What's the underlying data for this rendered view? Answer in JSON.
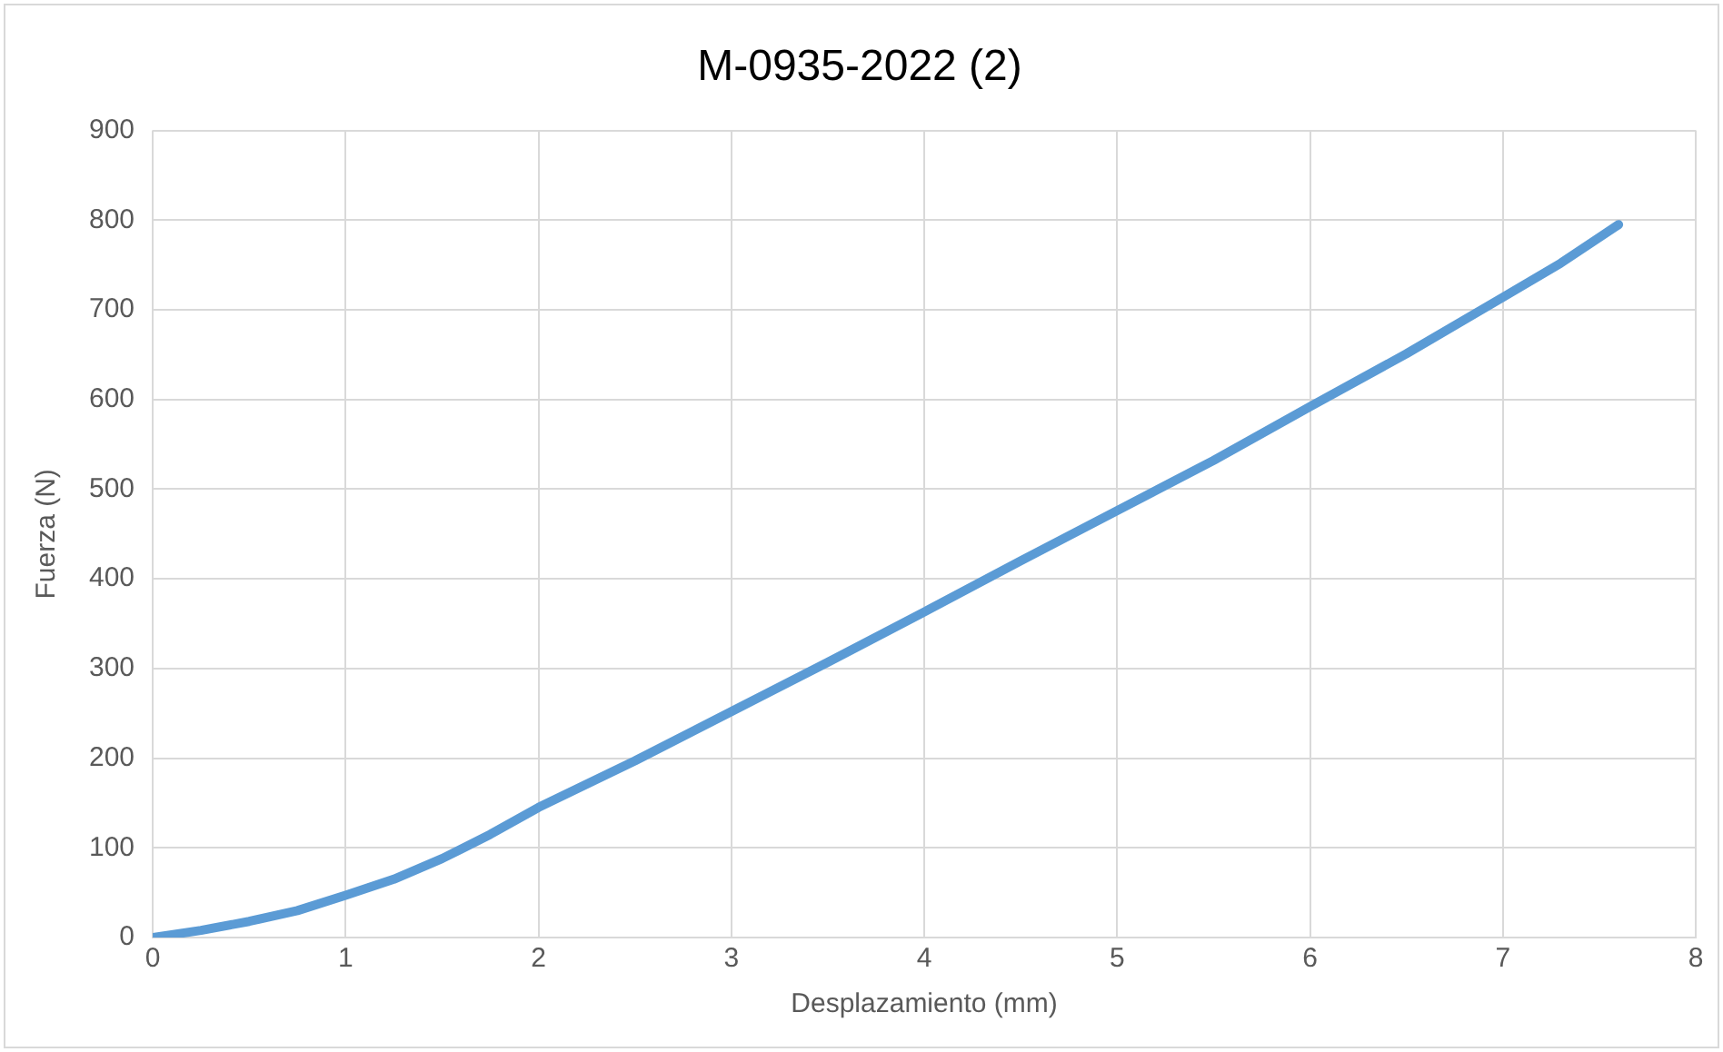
{
  "chart_data": {
    "type": "line",
    "title": "M-0935-2022 (2)",
    "xlabel": "Desplazamiento (mm)",
    "ylabel": "Fuerza (N)",
    "series": [
      {
        "color": "#5b9bd5",
        "x": [
          0,
          0.25,
          0.5,
          0.75,
          1,
          1.25,
          1.5,
          1.75,
          2,
          2.5,
          3,
          3.5,
          4,
          4.5,
          5,
          5.5,
          6,
          6.5,
          7,
          7.3,
          7.6
        ],
        "values": [
          0,
          8,
          18,
          30,
          47,
          65,
          88,
          115,
          145,
          197,
          252,
          307,
          363,
          420,
          476,
          532,
          592,
          651,
          714,
          752,
          795
        ]
      }
    ],
    "xlim": [
      0,
      8
    ],
    "xticks": [
      0,
      1,
      2,
      3,
      4,
      5,
      6,
      7,
      8
    ],
    "ylim": [
      0,
      900
    ],
    "yticks": [
      0,
      100,
      200,
      300,
      400,
      500,
      600,
      700,
      800,
      900
    ],
    "grid": true,
    "legend": false,
    "marker": "none",
    "line_style": "solid"
  }
}
